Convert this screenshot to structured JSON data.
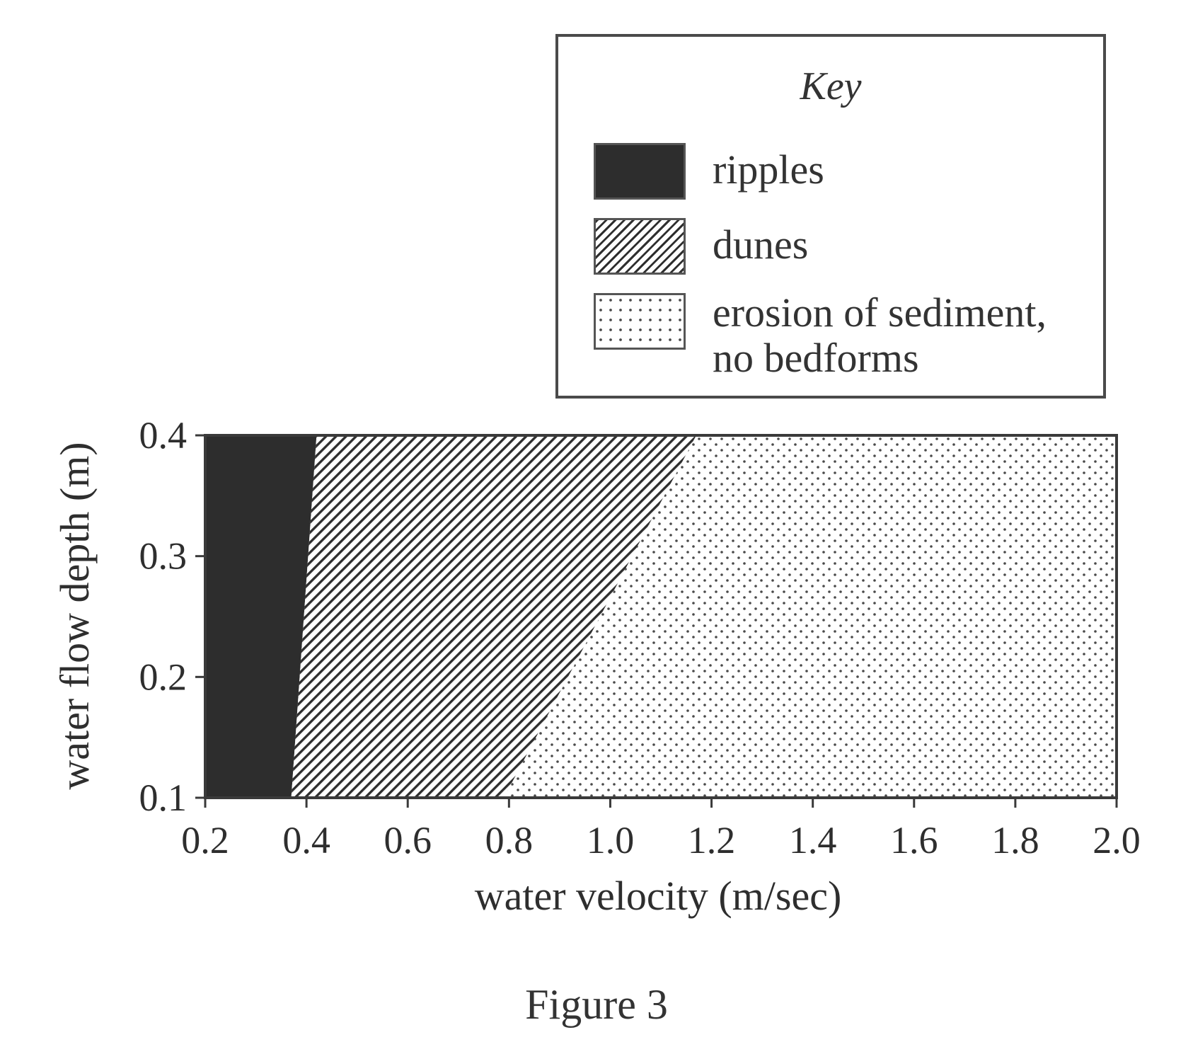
{
  "legend": {
    "title": "Key",
    "items": [
      {
        "label_lines": [
          "ripples"
        ],
        "pattern": "solid-dark"
      },
      {
        "label_lines": [
          "dunes"
        ],
        "pattern": "diagonal-hatch"
      },
      {
        "label_lines": [
          "erosion of sediment,",
          "no bedforms"
        ],
        "pattern": "dots"
      }
    ]
  },
  "caption": "Figure 3",
  "chart_data": {
    "type": "area",
    "xlabel": "water velocity (m/sec)",
    "ylabel": "water flow depth (m)",
    "x_ticks": [
      "0.2",
      "0.4",
      "0.6",
      "0.8",
      "1.0",
      "1.2",
      "1.4",
      "1.6",
      "1.8",
      "2.0"
    ],
    "y_ticks": [
      "0.1",
      "0.2",
      "0.3",
      "0.4"
    ],
    "xlim": [
      0.2,
      2.0
    ],
    "ylim": [
      0.1,
      0.4
    ],
    "regions": [
      {
        "name": "ripples",
        "pattern": "solid-dark",
        "polygon": [
          [
            0.2,
            0.1
          ],
          [
            0.37,
            0.1
          ],
          [
            0.42,
            0.4
          ],
          [
            0.2,
            0.4
          ]
        ]
      },
      {
        "name": "dunes",
        "pattern": "diagonal-hatch",
        "polygon": [
          [
            0.37,
            0.1
          ],
          [
            0.79,
            0.1
          ],
          [
            1.17,
            0.4
          ],
          [
            0.42,
            0.4
          ]
        ]
      },
      {
        "name": "erosion of sediment, no bedforms",
        "pattern": "dots",
        "polygon": [
          [
            0.79,
            0.1
          ],
          [
            2.0,
            0.1
          ],
          [
            2.0,
            0.4
          ],
          [
            1.17,
            0.4
          ]
        ]
      }
    ],
    "colors": {
      "dark": "#2d2d2d",
      "stroke": "#3a3a3a"
    }
  }
}
